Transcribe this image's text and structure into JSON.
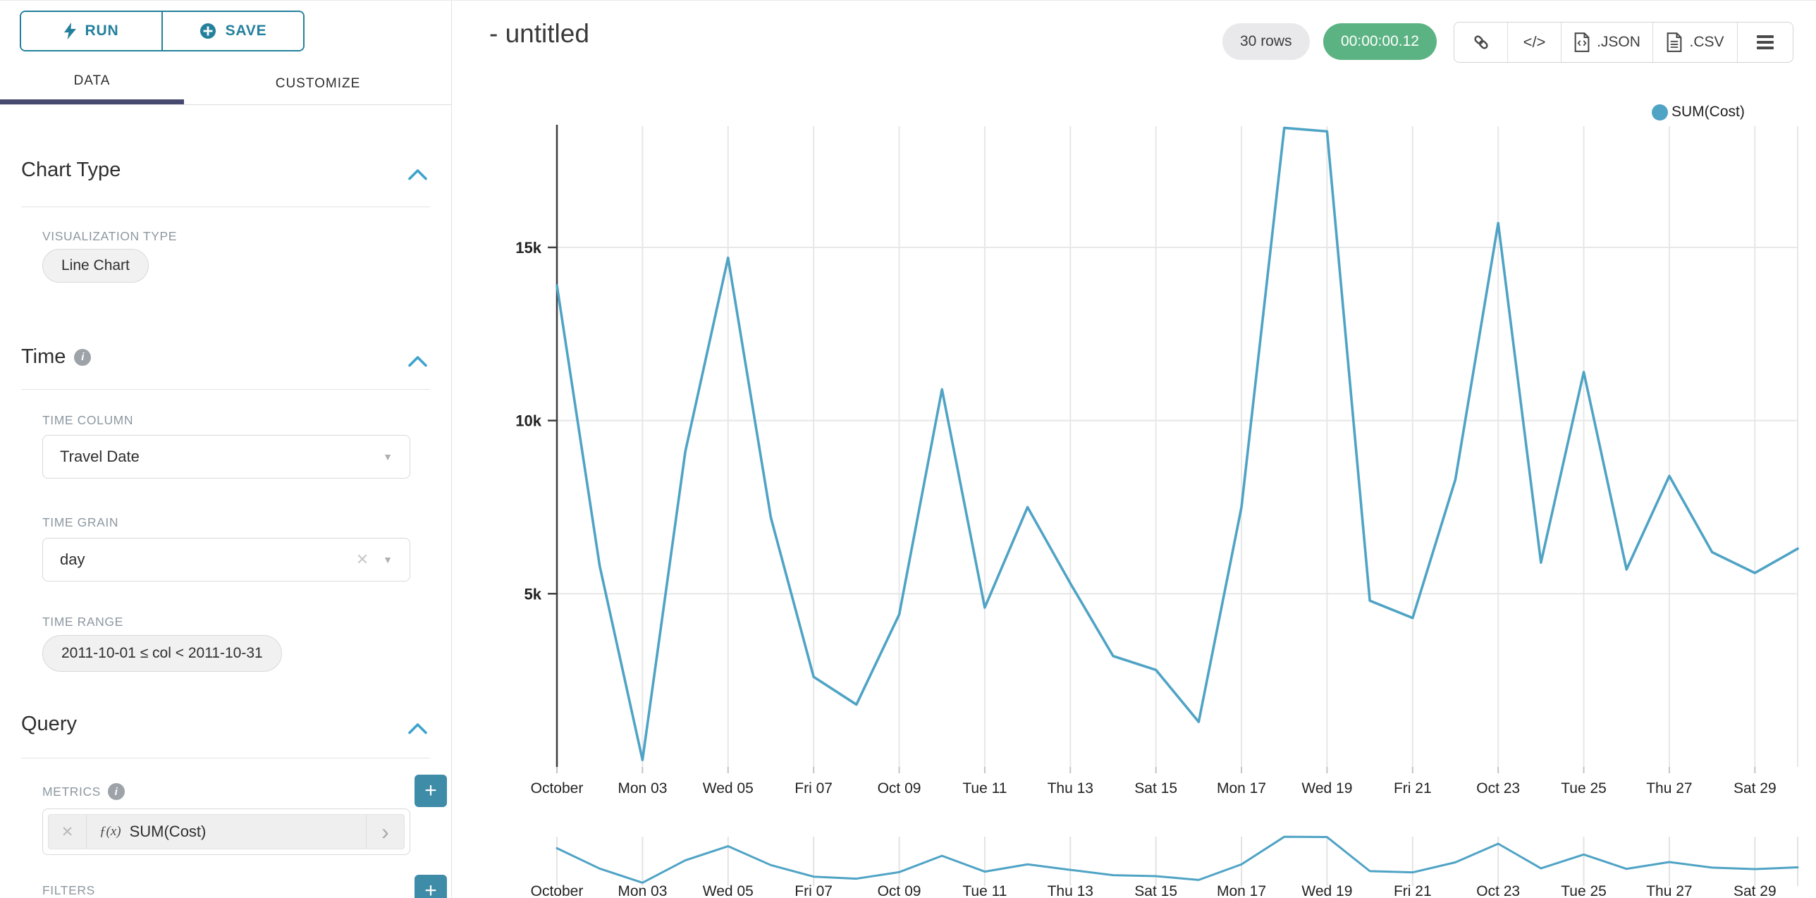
{
  "glyphs": {
    "plus": "+",
    "close": "✕",
    "caret": "▼",
    "chevron_right": "›",
    "info": "i",
    "code": "</>"
  },
  "panel": {
    "run_label": "RUN",
    "save_label": "SAVE",
    "tabs": {
      "data": "DATA",
      "customize": "CUSTOMIZE"
    },
    "chart_type": {
      "title": "Chart Type",
      "viz_label": "VISUALIZATION TYPE",
      "viz_value": "Line Chart"
    },
    "time": {
      "title": "Time",
      "column_label": "TIME COLUMN",
      "column_value": "Travel Date",
      "grain_label": "TIME GRAIN",
      "grain_value": "day",
      "range_label": "TIME RANGE",
      "range_value": "2011-10-01 ≤ col < 2011-10-31"
    },
    "query": {
      "title": "Query",
      "metrics_label": "METRICS",
      "metric_fx": "ƒ(x)",
      "metric_value": "SUM(Cost)",
      "filters_label": "FILTERS"
    }
  },
  "header": {
    "title": "- untitled",
    "rows_badge": "30 rows",
    "timer_badge": "00:00:00.12",
    "export": {
      "json_label": ".JSON",
      "csv_label": ".CSV"
    }
  },
  "chart_data": {
    "type": "line",
    "legend": {
      "label": "SUM(Cost)",
      "position": "top-right"
    },
    "color": "#4FA3C5",
    "grid": true,
    "context_brush_chart": true,
    "x_dates": [
      "2011-10-01",
      "2011-10-02",
      "2011-10-03",
      "2011-10-04",
      "2011-10-05",
      "2011-10-06",
      "2011-10-07",
      "2011-10-08",
      "2011-10-09",
      "2011-10-10",
      "2011-10-11",
      "2011-10-12",
      "2011-10-13",
      "2011-10-14",
      "2011-10-15",
      "2011-10-16",
      "2011-10-17",
      "2011-10-18",
      "2011-10-19",
      "2011-10-20",
      "2011-10-21",
      "2011-10-22",
      "2011-10-23",
      "2011-10-24",
      "2011-10-25",
      "2011-10-26",
      "2011-10-27",
      "2011-10-28",
      "2011-10-29",
      "2011-10-30"
    ],
    "series": [
      {
        "name": "SUM(Cost)",
        "values": [
          13900,
          5800,
          200,
          9100,
          14700,
          7200,
          2600,
          1800,
          4400,
          10900,
          4600,
          7500,
          5300,
          3200,
          2800,
          1300,
          7500,
          18450,
          18350,
          4800,
          4300,
          8300,
          15700,
          5900,
          11400,
          5700,
          8400,
          6200,
          5600,
          6300
        ]
      }
    ],
    "x_tick_labels": [
      "October",
      "Mon 03",
      "Wed 05",
      "Fri 07",
      "Oct 09",
      "Tue 11",
      "Thu 13",
      "Sat 15",
      "Mon 17",
      "Wed 19",
      "Fri 21",
      "Oct 23",
      "Tue 25",
      "Thu 27",
      "Sat 29"
    ],
    "y_tick_values": [
      5000,
      10000,
      15000
    ],
    "y_tick_labels": [
      "5k",
      "10k",
      "15k"
    ],
    "ylim": [
      0,
      18500
    ],
    "xlabel": "",
    "ylabel": ""
  }
}
